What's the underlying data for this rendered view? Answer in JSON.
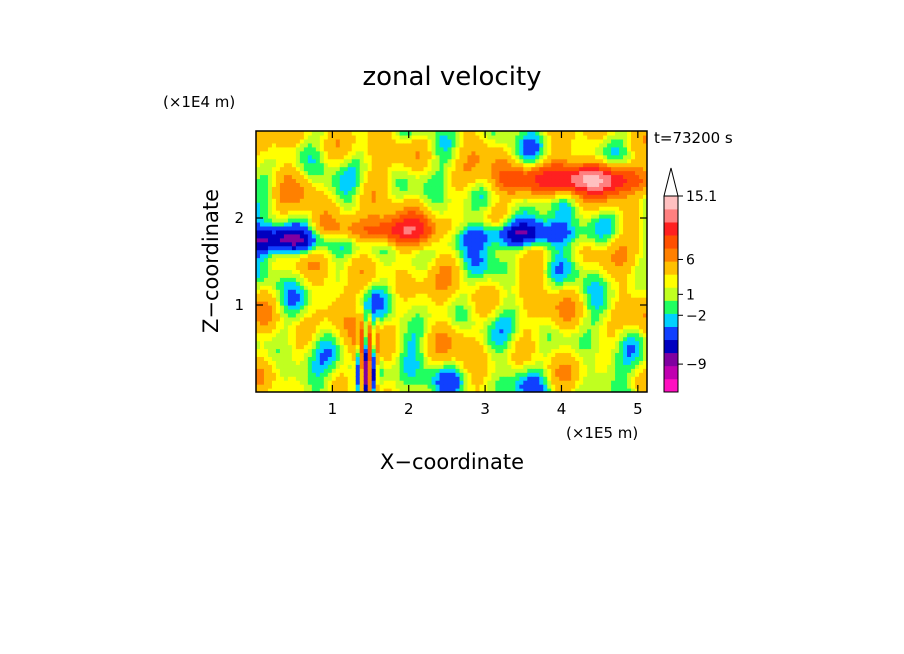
{
  "chart_data": {
    "type": "heatmap",
    "title": "zonal velocity",
    "xlabel": "X−coordinate",
    "ylabel": "Z−coordinate",
    "x_unit": "(×1E5 m)",
    "y_unit": "(×1E4 m)",
    "time_label": "t=73200 s",
    "xlim": [
      0,
      5.12
    ],
    "ylim": [
      0,
      3.0
    ],
    "x_ticks": [
      1,
      2,
      3,
      4,
      5
    ],
    "y_ticks": [
      1,
      2
    ],
    "grid": false,
    "colorbar": {
      "placement": "right",
      "colors": [
        "#ff10c0",
        "#c000b0",
        "#8000a0",
        "#0000c0",
        "#1040ff",
        "#00d0ff",
        "#20ff60",
        "#c0ff20",
        "#ffff00",
        "#ffc000",
        "#ff8000",
        "#ff5000",
        "#ff2020",
        "#ff8080",
        "#ffc0c0"
      ],
      "tick_labels": [
        "15.1",
        "6",
        "1",
        "−2",
        "−9"
      ],
      "tick_values": [
        15.1,
        6,
        1,
        -2,
        -9
      ],
      "extend": "max"
    },
    "field_features": {
      "jets": [
        {
          "z": 2.45,
          "x_center": 4.3,
          "strength": 12
        },
        {
          "z": 1.85,
          "x_center": 1.8,
          "strength": 9
        },
        {
          "z": 1.75,
          "x_center": 0.3,
          "strength": -8
        },
        {
          "z": 1.82,
          "x_center": 3.3,
          "strength": -8
        }
      ],
      "narrow_feature_x": 1.45
    }
  }
}
